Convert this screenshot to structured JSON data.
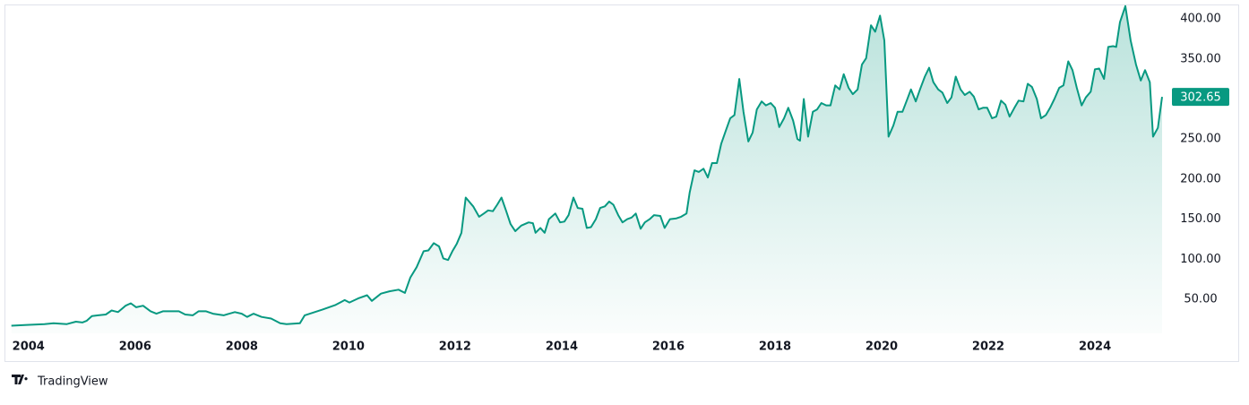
{
  "chart_data": {
    "type": "area",
    "color": "#089981",
    "x": [
      2003.68,
      2003.97,
      2004.3,
      2004.47,
      2004.72,
      2004.89,
      2005.01,
      2005.09,
      2005.19,
      2005.31,
      2005.45,
      2005.56,
      2005.68,
      2005.82,
      2005.92,
      2006.02,
      2006.15,
      2006.29,
      2006.4,
      2006.52,
      2006.69,
      2006.82,
      2006.94,
      2007.08,
      2007.19,
      2007.33,
      2007.46,
      2007.66,
      2007.87,
      2008.0,
      2008.1,
      2008.22,
      2008.37,
      2008.55,
      2008.72,
      2008.84,
      2009.09,
      2009.18,
      2009.51,
      2009.76,
      2009.93,
      2010.02,
      2010.18,
      2010.35,
      2010.44,
      2010.61,
      2010.77,
      2010.94,
      2011.06,
      2011.16,
      2011.28,
      2011.41,
      2011.5,
      2011.6,
      2011.7,
      2011.78,
      2011.87,
      2011.95,
      2012.03,
      2012.12,
      2012.2,
      2012.34,
      2012.45,
      2012.54,
      2012.62,
      2012.71,
      2012.79,
      2012.87,
      2012.96,
      2013.04,
      2013.13,
      2013.24,
      2013.38,
      2013.46,
      2013.51,
      2013.6,
      2013.68,
      2013.76,
      2013.88,
      2013.97,
      2014.05,
      2014.13,
      2014.22,
      2014.3,
      2014.39,
      2014.47,
      2014.55,
      2014.64,
      2014.72,
      2014.81,
      2014.89,
      2014.97,
      2015.06,
      2015.14,
      2015.23,
      2015.31,
      2015.39,
      2015.48,
      2015.56,
      2015.65,
      2015.73,
      2015.85,
      2015.93,
      2016.03,
      2016.15,
      2016.24,
      2016.34,
      2016.4,
      2016.49,
      2016.57,
      2016.66,
      2016.74,
      2016.82,
      2016.91,
      2016.99,
      2017.08,
      2017.16,
      2017.24,
      2017.33,
      2017.41,
      2017.5,
      2017.58,
      2017.66,
      2017.75,
      2017.83,
      2017.92,
      2018.0,
      2018.08,
      2018.17,
      2018.25,
      2018.34,
      2018.42,
      2018.47,
      2018.54,
      2018.62,
      2018.71,
      2018.79,
      2018.87,
      2018.96,
      2019.04,
      2019.13,
      2019.21,
      2019.29,
      2019.38,
      2019.46,
      2019.55,
      2019.63,
      2019.71,
      2019.8,
      2019.88,
      2019.97,
      2020.05,
      2020.13,
      2020.22,
      2020.3,
      2020.39,
      2020.47,
      2020.55,
      2020.64,
      2020.72,
      2020.81,
      2020.89,
      2020.97,
      2021.06,
      2021.14,
      2021.23,
      2021.31,
      2021.39,
      2021.48,
      2021.56,
      2021.65,
      2021.73,
      2021.82,
      2021.9,
      2021.98,
      2022.07,
      2022.15,
      2022.24,
      2022.32,
      2022.4,
      2022.49,
      2022.57,
      2022.66,
      2022.74,
      2022.82,
      2022.91,
      2022.99,
      2023.08,
      2023.16,
      2023.24,
      2023.33,
      2023.41,
      2023.5,
      2023.58,
      2023.66,
      2023.75,
      2023.83,
      2023.92,
      2024.0,
      2024.08,
      2024.17,
      2024.25,
      2024.34,
      2024.4,
      2024.47,
      2024.57,
      2024.67,
      2024.77,
      2024.86,
      2024.94,
      2025.03,
      2025.09,
      2025.18,
      2025.26
    ],
    "values": [
      17,
      18,
      19,
      20,
      19,
      22,
      21,
      23,
      29,
      30,
      31,
      36,
      34,
      42,
      45,
      40,
      42,
      35,
      32,
      35,
      35,
      35,
      31,
      30,
      35,
      35,
      32,
      30,
      34,
      32,
      28,
      32,
      28,
      26,
      20,
      19,
      20,
      30,
      37,
      43,
      49,
      46,
      51,
      55,
      48,
      57,
      60,
      62,
      58,
      77,
      90,
      110,
      111,
      120,
      116,
      101,
      99,
      110,
      119,
      133,
      177,
      166,
      153,
      157,
      161,
      160,
      168,
      177,
      160,
      144,
      135,
      142,
      146,
      145,
      133,
      139,
      133,
      150,
      157,
      146,
      147,
      155,
      177,
      164,
      163,
      139,
      140,
      150,
      164,
      166,
      172,
      168,
      155,
      146,
      150,
      152,
      157,
      138,
      146,
      150,
      155,
      154,
      139,
      150,
      151,
      153,
      157,
      183,
      211,
      209,
      213,
      202,
      220,
      220,
      244,
      261,
      276,
      280,
      325,
      284,
      247,
      258,
      287,
      297,
      292,
      295,
      289,
      265,
      276,
      289,
      273,
      250,
      248,
      300,
      253,
      284,
      287,
      295,
      292,
      292,
      317,
      312,
      331,
      314,
      306,
      312,
      343,
      351,
      392,
      384,
      404,
      373,
      253,
      267,
      284,
      284,
      298,
      312,
      297,
      312,
      328,
      339,
      321,
      312,
      308,
      295,
      302,
      328,
      312,
      305,
      309,
      303,
      287,
      289,
      289,
      276,
      278,
      298,
      293,
      278,
      289,
      298,
      297,
      319,
      315,
      300,
      276,
      280,
      289,
      300,
      314,
      317,
      347,
      336,
      314,
      292,
      302,
      309,
      337,
      338,
      325,
      365,
      366,
      365,
      396,
      416,
      373,
      343,
      323,
      336,
      321,
      253,
      264,
      302.65
    ],
    "xlim": [
      2003.55,
      2025.31
    ],
    "xticks": [
      2004,
      2006,
      2008,
      2010,
      2012,
      2014,
      2016,
      2018,
      2020,
      2022,
      2024
    ],
    "ylim": [
      7.5,
      418
    ],
    "yticks": [
      {
        "value": 50,
        "label": "50.00"
      },
      {
        "value": 100,
        "label": "100.00"
      },
      {
        "value": 150,
        "label": "150.00"
      },
      {
        "value": 200,
        "label": "200.00"
      },
      {
        "value": 250,
        "label": "250.00"
      },
      {
        "value": 300,
        "label": "300.00"
      },
      {
        "value": 350,
        "label": "350.00"
      },
      {
        "value": 400,
        "label": "400.00"
      }
    ],
    "grid": false
  },
  "footer": {
    "brand": "TradingView"
  }
}
